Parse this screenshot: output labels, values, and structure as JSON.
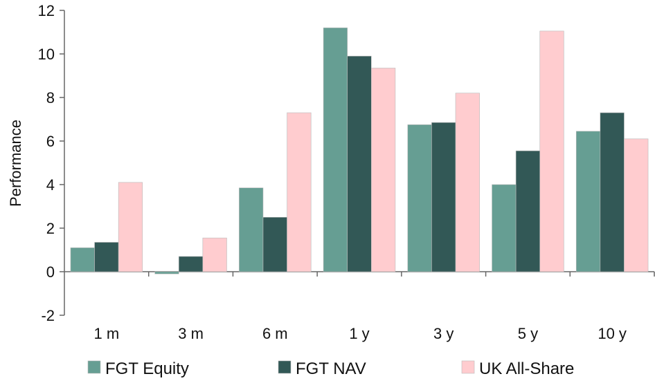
{
  "chart_data": {
    "type": "bar",
    "categories": [
      "1 m",
      "3 m",
      "6 m",
      "1 y",
      "3 y",
      "5 y",
      "10 y"
    ],
    "series": [
      {
        "name": "FGT Equity",
        "values": [
          1.1,
          -0.1,
          3.85,
          11.2,
          6.75,
          4.0,
          6.45
        ],
        "color": "#669e93"
      },
      {
        "name": "FGT NAV",
        "values": [
          1.35,
          0.7,
          2.5,
          9.9,
          6.85,
          5.55,
          7.3
        ],
        "color": "#325856"
      },
      {
        "name": "UK All-Share",
        "values": [
          4.1,
          1.55,
          7.3,
          9.35,
          8.2,
          11.05,
          6.1
        ],
        "color": "#ffcccf"
      }
    ],
    "title": "",
    "xlabel": "",
    "ylabel": "Performance",
    "ylim": [
      -2,
      12
    ],
    "yticks": [
      "-2",
      "0",
      "2",
      "4",
      "6",
      "8",
      "10",
      "12"
    ],
    "grid": false,
    "legend_position": "bottom"
  }
}
